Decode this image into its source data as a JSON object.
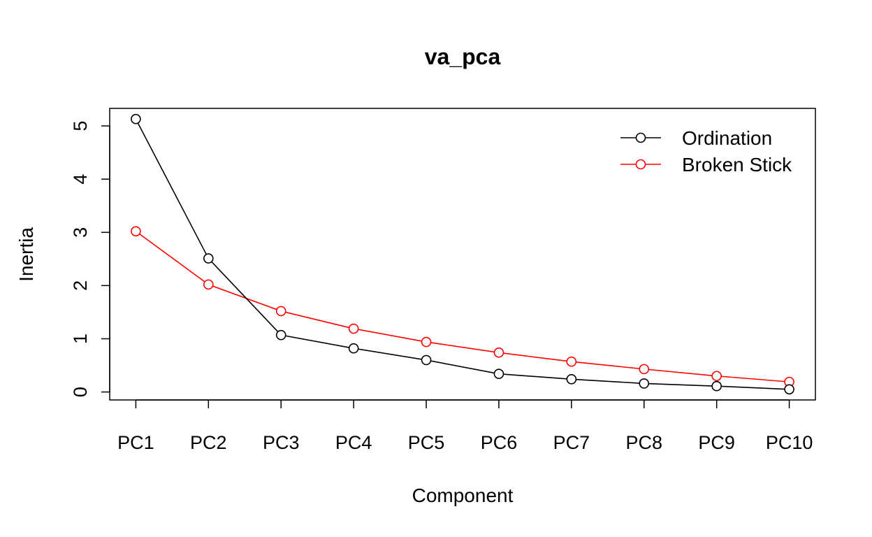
{
  "chart_data": {
    "type": "line",
    "title": "va_pca",
    "xlabel": "Component",
    "ylabel": "Inertia",
    "categories": [
      "PC1",
      "PC2",
      "PC3",
      "PC4",
      "PC5",
      "PC6",
      "PC7",
      "PC8",
      "PC9",
      "PC10"
    ],
    "yticks": [
      0,
      1,
      2,
      3,
      4,
      5
    ],
    "ylim": [
      -0.15,
      5.33
    ],
    "grid": false,
    "legend_position": "top-right",
    "series": [
      {
        "name": "Ordination",
        "color": "#000000",
        "marker": "open-circle",
        "values": [
          5.13,
          2.51,
          1.07,
          0.82,
          0.6,
          0.34,
          0.24,
          0.16,
          0.11,
          0.05
        ]
      },
      {
        "name": "Broken Stick",
        "color": "#ff0000",
        "marker": "open-circle",
        "values": [
          3.02,
          2.02,
          1.52,
          1.19,
          0.94,
          0.74,
          0.57,
          0.43,
          0.3,
          0.19
        ]
      }
    ]
  }
}
